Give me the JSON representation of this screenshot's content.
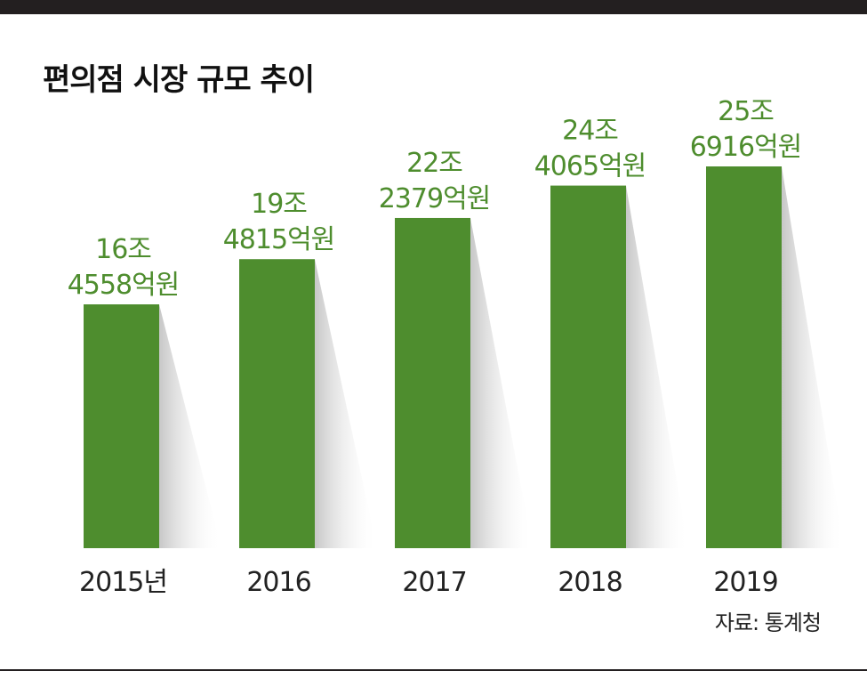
{
  "title": "편의점 시장 규모 추이",
  "source": "자료: 통계청",
  "colors": {
    "bar": "#4e8d2e",
    "label": "#4e8d2e",
    "axis_text": "#222222"
  },
  "chart_data": {
    "type": "bar",
    "title": "편의점 시장 규모 추이",
    "categories": [
      "2015년",
      "2016",
      "2017",
      "2018",
      "2019"
    ],
    "values": [
      164558,
      194815,
      222379,
      244065,
      256916
    ],
    "unit": "억원",
    "data_labels": [
      [
        "16조",
        "4558억원"
      ],
      [
        "19조",
        "4815억원"
      ],
      [
        "22조",
        "2379억원"
      ],
      [
        "24조",
        "4065억원"
      ],
      [
        "25조",
        "6916억원"
      ]
    ],
    "xlabel": "",
    "ylabel": "",
    "grid": false,
    "legend": "none"
  }
}
